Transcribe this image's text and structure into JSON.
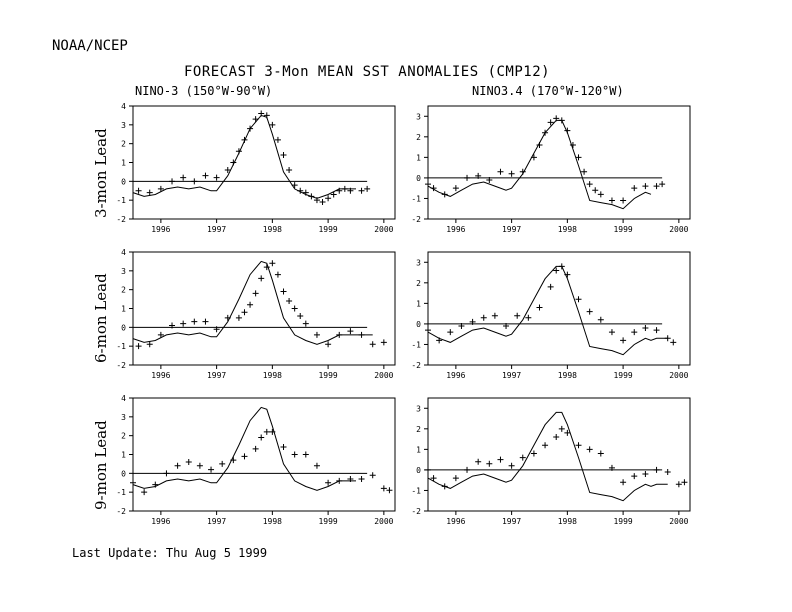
{
  "header": {
    "org": "NOAA/NCEP",
    "title": "FORECAST 3-Mon MEAN SST ANOMALIES (CMP12)",
    "col1": "NINO-3 (150°W-90°W)",
    "col2": "NINO3.4 (170°W-120°W)",
    "update": "Last Update: Thu Aug 5 1999"
  },
  "chart_data": [
    {
      "type": "line",
      "row": "3-mon Lead",
      "region": "NINO-3 (150°W-90°W)",
      "xlim": [
        1995.5,
        2000.2
      ],
      "ylim": [
        -2,
        4
      ],
      "xticks": [
        1996,
        1997,
        1998,
        1999,
        2000
      ],
      "yticks": [
        -2,
        -1,
        0,
        1,
        2,
        3,
        4
      ],
      "observed": {
        "x": [
          1995.5,
          1995.7,
          1995.9,
          1996.1,
          1996.3,
          1996.5,
          1996.7,
          1996.9,
          1997.0,
          1997.2,
          1997.4,
          1997.6,
          1997.8,
          1997.9,
          1998.0,
          1998.2,
          1998.4,
          1998.6,
          1998.8,
          1999.0,
          1999.2,
          1999.4,
          1999.5
        ],
        "y": [
          -0.6,
          -0.8,
          -0.7,
          -0.4,
          -0.3,
          -0.4,
          -0.3,
          -0.5,
          -0.5,
          0.3,
          1.5,
          2.8,
          3.5,
          3.4,
          2.5,
          0.5,
          -0.4,
          -0.7,
          -0.9,
          -0.7,
          -0.4,
          -0.4,
          -0.4
        ]
      },
      "forecast": {
        "x": [
          1995.6,
          1995.8,
          1996.0,
          1996.2,
          1996.4,
          1996.6,
          1996.8,
          1997.0,
          1997.2,
          1997.3,
          1997.4,
          1997.5,
          1997.6,
          1997.7,
          1997.8,
          1997.9,
          1998.0,
          1998.1,
          1998.2,
          1998.3,
          1998.4,
          1998.5,
          1998.6,
          1998.7,
          1998.8,
          1998.9,
          1999.0,
          1999.1,
          1999.2,
          1999.3,
          1999.4,
          1999.6,
          1999.7
        ],
        "y": [
          -0.5,
          -0.6,
          -0.4,
          0.0,
          0.2,
          0.0,
          0.3,
          0.2,
          0.6,
          1.0,
          1.6,
          2.2,
          2.8,
          3.3,
          3.6,
          3.5,
          3.0,
          2.2,
          1.4,
          0.6,
          -0.2,
          -0.5,
          -0.6,
          -0.8,
          -1.0,
          -1.1,
          -0.9,
          -0.7,
          -0.5,
          -0.4,
          -0.5,
          -0.5,
          -0.4
        ]
      }
    },
    {
      "type": "line",
      "row": "3-mon Lead",
      "region": "NINO3.4 (170°W-120°W)",
      "xlim": [
        1995.5,
        2000.2
      ],
      "ylim": [
        -2,
        3.5
      ],
      "xticks": [
        1996,
        1997,
        1998,
        1999,
        2000
      ],
      "yticks": [
        -2,
        -1,
        0,
        1,
        2,
        3
      ],
      "observed": {
        "x": [
          1995.5,
          1995.7,
          1995.9,
          1996.1,
          1996.3,
          1996.5,
          1996.7,
          1996.9,
          1997.0,
          1997.2,
          1997.4,
          1997.6,
          1997.8,
          1997.9,
          1998.0,
          1998.2,
          1998.4,
          1998.6,
          1998.8,
          1999.0,
          1999.2,
          1999.4,
          1999.5
        ],
        "y": [
          -0.4,
          -0.7,
          -0.9,
          -0.6,
          -0.3,
          -0.2,
          -0.4,
          -0.6,
          -0.5,
          0.2,
          1.2,
          2.2,
          2.8,
          2.8,
          2.2,
          0.6,
          -1.1,
          -1.2,
          -1.3,
          -1.5,
          -1.0,
          -0.7,
          -0.8
        ]
      },
      "forecast": {
        "x": [
          1995.5,
          1995.6,
          1995.8,
          1996.0,
          1996.2,
          1996.4,
          1996.6,
          1996.8,
          1997.0,
          1997.2,
          1997.4,
          1997.5,
          1997.6,
          1997.7,
          1997.8,
          1997.9,
          1998.0,
          1998.1,
          1998.2,
          1998.3,
          1998.4,
          1998.5,
          1998.6,
          1998.8,
          1999.0,
          1999.2,
          1999.4,
          1999.6,
          1999.7
        ],
        "y": [
          -0.3,
          -0.5,
          -0.8,
          -0.5,
          0.0,
          0.1,
          -0.1,
          0.3,
          0.2,
          0.3,
          1.0,
          1.6,
          2.2,
          2.7,
          2.9,
          2.8,
          2.3,
          1.6,
          1.0,
          0.3,
          -0.3,
          -0.6,
          -0.8,
          -1.1,
          -1.1,
          -0.5,
          -0.4,
          -0.4,
          -0.3
        ]
      }
    },
    {
      "type": "line",
      "row": "6-mon Lead",
      "region": "NINO-3 (150°W-90°W)",
      "xlim": [
        1995.5,
        2000.2
      ],
      "ylim": [
        -2,
        4
      ],
      "xticks": [
        1996,
        1997,
        1998,
        1999,
        2000
      ],
      "yticks": [
        -2,
        -1,
        0,
        1,
        2,
        3,
        4
      ],
      "observed": {
        "x": [
          1995.5,
          1995.7,
          1995.9,
          1996.1,
          1996.3,
          1996.5,
          1996.7,
          1996.9,
          1997.0,
          1997.2,
          1997.4,
          1997.6,
          1997.8,
          1997.9,
          1998.0,
          1998.2,
          1998.4,
          1998.6,
          1998.8,
          1999.0,
          1999.2,
          1999.4,
          1999.5,
          1999.6,
          1999.8
        ],
        "y": [
          -0.6,
          -0.8,
          -0.7,
          -0.4,
          -0.3,
          -0.4,
          -0.3,
          -0.5,
          -0.5,
          0.3,
          1.5,
          2.8,
          3.5,
          3.4,
          2.5,
          0.5,
          -0.4,
          -0.7,
          -0.9,
          -0.7,
          -0.4,
          -0.4,
          -0.4,
          -0.4,
          -0.4
        ]
      },
      "forecast": {
        "x": [
          1995.6,
          1995.8,
          1996.0,
          1996.2,
          1996.4,
          1996.6,
          1996.8,
          1997.0,
          1997.2,
          1997.4,
          1997.5,
          1997.6,
          1997.7,
          1997.8,
          1997.9,
          1998.0,
          1998.1,
          1998.2,
          1998.3,
          1998.4,
          1998.5,
          1998.6,
          1998.8,
          1999.0,
          1999.2,
          1999.4,
          1999.6,
          1999.8,
          2000.0
        ],
        "y": [
          -1.0,
          -0.9,
          -0.4,
          0.1,
          0.2,
          0.3,
          0.3,
          -0.1,
          0.5,
          0.5,
          0.8,
          1.2,
          1.8,
          2.6,
          3.2,
          3.4,
          2.8,
          1.9,
          1.4,
          1.0,
          0.6,
          0.2,
          -0.4,
          -0.9,
          -0.4,
          -0.2,
          -0.4,
          -0.9,
          -0.8
        ]
      }
    },
    {
      "type": "line",
      "row": "6-mon Lead",
      "region": "NINO3.4 (170°W-120°W)",
      "xlim": [
        1995.5,
        2000.2
      ],
      "ylim": [
        -2,
        3.5
      ],
      "xticks": [
        1996,
        1997,
        1998,
        1999,
        2000
      ],
      "yticks": [
        -2,
        -1,
        0,
        1,
        2,
        3
      ],
      "observed": {
        "x": [
          1995.5,
          1995.7,
          1995.9,
          1996.1,
          1996.3,
          1996.5,
          1996.7,
          1996.9,
          1997.0,
          1997.2,
          1997.4,
          1997.6,
          1997.8,
          1997.9,
          1998.0,
          1998.2,
          1998.4,
          1998.6,
          1998.8,
          1999.0,
          1999.2,
          1999.4,
          1999.5,
          1999.6,
          1999.8
        ],
        "y": [
          -0.4,
          -0.7,
          -0.9,
          -0.6,
          -0.3,
          -0.2,
          -0.4,
          -0.6,
          -0.5,
          0.2,
          1.2,
          2.2,
          2.8,
          2.8,
          2.2,
          0.6,
          -1.1,
          -1.2,
          -1.3,
          -1.5,
          -1.0,
          -0.7,
          -0.8,
          -0.7,
          -0.7
        ]
      },
      "forecast": {
        "x": [
          1995.5,
          1995.7,
          1995.9,
          1996.1,
          1996.3,
          1996.5,
          1996.7,
          1996.9,
          1997.1,
          1997.3,
          1997.5,
          1997.7,
          1997.8,
          1997.9,
          1998.0,
          1998.2,
          1998.4,
          1998.6,
          1998.8,
          1999.0,
          1999.2,
          1999.4,
          1999.6,
          1999.8,
          1999.9
        ],
        "y": [
          -0.3,
          -0.8,
          -0.4,
          -0.1,
          0.1,
          0.3,
          0.4,
          -0.1,
          0.4,
          0.3,
          0.8,
          1.8,
          2.6,
          2.8,
          2.4,
          1.2,
          0.6,
          0.2,
          -0.4,
          -0.8,
          -0.4,
          -0.2,
          -0.3,
          -0.7,
          -0.9
        ]
      }
    },
    {
      "type": "line",
      "row": "9-mon Lead",
      "region": "NINO-3 (150°W-90°W)",
      "xlim": [
        1995.5,
        2000.2
      ],
      "ylim": [
        -2,
        4
      ],
      "xticks": [
        1996,
        1997,
        1998,
        1999,
        2000
      ],
      "yticks": [
        -2,
        -1,
        0,
        1,
        2,
        3,
        4
      ],
      "observed": {
        "x": [
          1995.5,
          1995.7,
          1995.9,
          1996.1,
          1996.3,
          1996.5,
          1996.7,
          1996.9,
          1997.0,
          1997.2,
          1997.4,
          1997.6,
          1997.8,
          1997.9,
          1998.0,
          1998.2,
          1998.4,
          1998.6,
          1998.8,
          1999.0,
          1999.2,
          1999.4,
          1999.5
        ],
        "y": [
          -0.6,
          -0.8,
          -0.7,
          -0.4,
          -0.3,
          -0.4,
          -0.3,
          -0.5,
          -0.5,
          0.3,
          1.5,
          2.8,
          3.5,
          3.4,
          2.5,
          0.5,
          -0.4,
          -0.7,
          -0.9,
          -0.7,
          -0.4,
          -0.4,
          -0.4
        ]
      },
      "forecast": {
        "x": [
          1995.5,
          1995.7,
          1995.9,
          1996.1,
          1996.3,
          1996.5,
          1996.7,
          1996.9,
          1997.1,
          1997.3,
          1997.5,
          1997.7,
          1997.8,
          1997.9,
          1998.0,
          1998.2,
          1998.4,
          1998.6,
          1998.8,
          1999.0,
          1999.2,
          1999.4,
          1999.6,
          1999.8,
          2000.0,
          2000.1
        ],
        "y": [
          -0.5,
          -1.0,
          -0.6,
          0.0,
          0.4,
          0.6,
          0.4,
          0.2,
          0.5,
          0.7,
          0.9,
          1.3,
          1.9,
          2.2,
          2.2,
          1.4,
          1.0,
          1.0,
          0.4,
          -0.5,
          -0.4,
          -0.3,
          -0.3,
          -0.1,
          -0.8,
          -0.9
        ]
      }
    },
    {
      "type": "line",
      "row": "9-mon Lead",
      "region": "NINO3.4 (170°W-120°W)",
      "xlim": [
        1995.5,
        2000.2
      ],
      "ylim": [
        -2,
        3.5
      ],
      "xticks": [
        1996,
        1997,
        1998,
        1999,
        2000
      ],
      "yticks": [
        -2,
        -1,
        0,
        1,
        2,
        3
      ],
      "observed": {
        "x": [
          1995.5,
          1995.7,
          1995.9,
          1996.1,
          1996.3,
          1996.5,
          1996.7,
          1996.9,
          1997.0,
          1997.2,
          1997.4,
          1997.6,
          1997.8,
          1997.9,
          1998.0,
          1998.2,
          1998.4,
          1998.6,
          1998.8,
          1999.0,
          1999.2,
          1999.4,
          1999.5,
          1999.6,
          1999.8
        ],
        "y": [
          -0.4,
          -0.7,
          -0.9,
          -0.6,
          -0.3,
          -0.2,
          -0.4,
          -0.6,
          -0.5,
          0.2,
          1.2,
          2.2,
          2.8,
          2.8,
          2.2,
          0.6,
          -1.1,
          -1.2,
          -1.3,
          -1.5,
          -1.0,
          -0.7,
          -0.8,
          -0.7,
          -0.7
        ]
      },
      "forecast": {
        "x": [
          1995.5,
          1995.6,
          1995.8,
          1996.0,
          1996.2,
          1996.4,
          1996.6,
          1996.8,
          1997.0,
          1997.2,
          1997.4,
          1997.6,
          1997.8,
          1997.9,
          1998.0,
          1998.2,
          1998.4,
          1998.6,
          1998.8,
          1999.0,
          1999.2,
          1999.4,
          1999.6,
          1999.8,
          2000.0,
          2000.1
        ],
        "y": [
          0.0,
          -0.4,
          -0.8,
          -0.4,
          0.0,
          0.4,
          0.3,
          0.5,
          0.2,
          0.6,
          0.8,
          1.2,
          1.6,
          2.0,
          1.8,
          1.2,
          1.0,
          0.8,
          0.1,
          -0.6,
          -0.3,
          -0.2,
          0.0,
          -0.1,
          -0.7,
          -0.6
        ]
      }
    }
  ],
  "panels_layout_note": ""
}
